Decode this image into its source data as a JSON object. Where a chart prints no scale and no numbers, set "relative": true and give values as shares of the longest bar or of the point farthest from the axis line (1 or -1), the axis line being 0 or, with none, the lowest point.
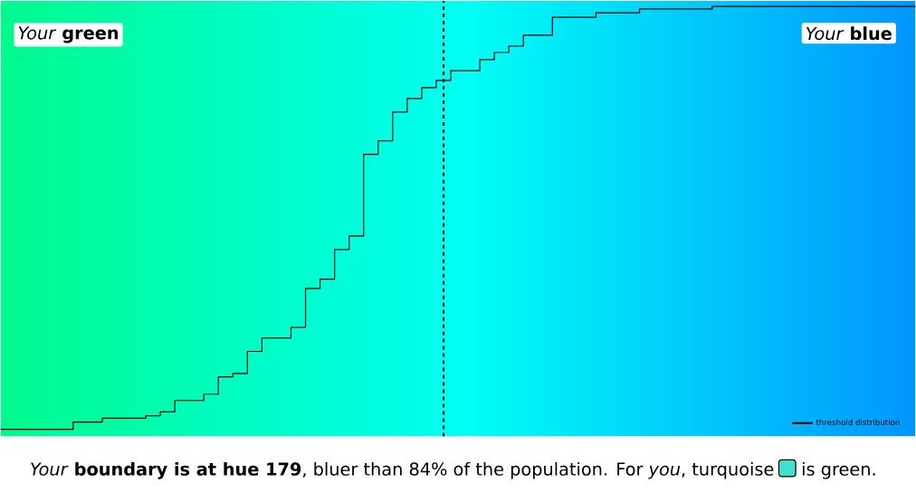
{
  "chart_data": {
    "type": "step",
    "relative": true,
    "categories": [
      null,
      null,
      null,
      null,
      null,
      null,
      null,
      null,
      null,
      null,
      null,
      null,
      null,
      null,
      null,
      null,
      null,
      null,
      null,
      null,
      null,
      null,
      null,
      null,
      null,
      null,
      null,
      null,
      null,
      null,
      null,
      null,
      null,
      null,
      null,
      null,
      null,
      null,
      null,
      null,
      null,
      null,
      null,
      null,
      null,
      null,
      null,
      null,
      null,
      null,
      null,
      null,
      null,
      null,
      null,
      null,
      null,
      null,
      null,
      null,
      null,
      null,
      null,
      null
    ],
    "series": [
      {
        "name": "threshold distribution",
        "color": "#000000",
        "line_style": "solid",
        "values": [
          0,
          0,
          0,
          0,
          0,
          0.017,
          0.017,
          0.026,
          0.026,
          0.026,
          0.032,
          0.041,
          0.068,
          0.068,
          0.083,
          0.124,
          0.132,
          0.184,
          0.216,
          0.216,
          0.241,
          0.333,
          0.355,
          0.425,
          0.457,
          0.65,
          0.682,
          0.75,
          0.782,
          0.808,
          0.825,
          0.848,
          0.848,
          0.874,
          0.891,
          0.906,
          0.932,
          0.932,
          0.974,
          0.974,
          0.974,
          0.985,
          0.985,
          0.985,
          0.994,
          0.994,
          0.994,
          0.994,
          0.994,
          1,
          1,
          1,
          1,
          1,
          1,
          1,
          1,
          1,
          1,
          1,
          1,
          1,
          1,
          1
        ]
      }
    ],
    "legend": "bottom right",
    "marker": "none",
    "annotations": [
      "*Your* **green**",
      "*Your* **blue**",
      "*Your* **boundary is at hue 179**, bluer than 84% of the population. For *you*, turquoise",
      "is green."
    ]
  }
}
